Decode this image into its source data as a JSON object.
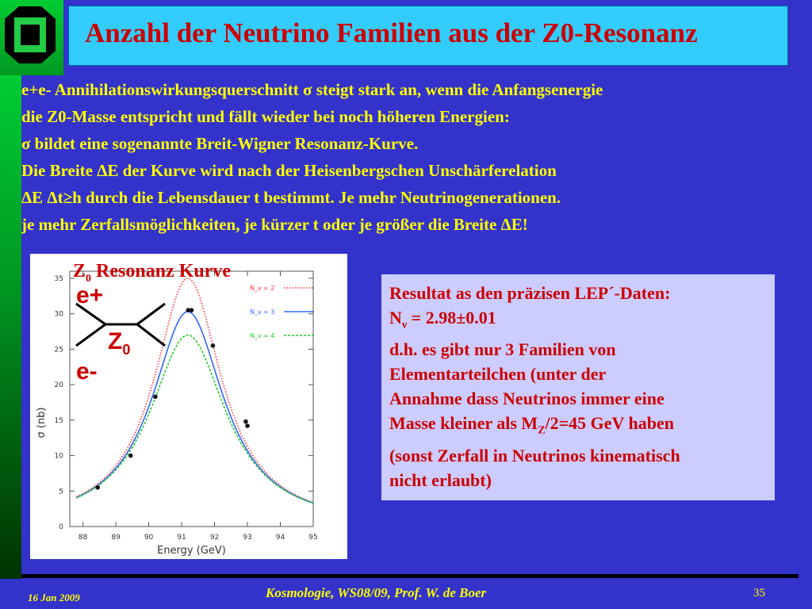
{
  "slide": {
    "title": "Anzahl der Neutrino Familien aus der Z0-Resonanz",
    "body_lines": [
      "e+e- Annihilationswirkungsquerschnitt σ steigt stark an,  wenn die Anfangsenergie",
      "die Z0-Masse entspricht und fällt wieder bei noch höheren Energien:",
      " σ bildet eine sogenannte Breit-Wigner Resonanz-Kurve.",
      " Die Breite ΔE der Kurve wird nach der Heisenbergschen Unschärferelation",
      "ΔE Δt≥h durch die Lebensdauer  t bestimmt. Je mehr Neutrinogenerationen.",
      "je mehr Zerfallsmöglichkeiten, je kürzer t oder je größer die Breite ΔE!"
    ]
  },
  "plot": {
    "title_main": "Z",
    "title_sub": "0",
    "title_rest": " Resonanz Kurve",
    "feynman": {
      "e_plus": "e+",
      "e_minus": "e-",
      "z_main": "Z",
      "z_sub": "0"
    }
  },
  "chart_data": {
    "type": "line",
    "xlabel": "Energy  (GeV)",
    "ylabel": "σ  (nb)",
    "xlim": [
      87.6,
      95
    ],
    "ylim": [
      0,
      36
    ],
    "x_ticks": [
      "88",
      "89",
      "90",
      "91",
      "92",
      "93",
      "94",
      "95"
    ],
    "y_ticks": [
      "0",
      "5",
      "10",
      "15",
      "20",
      "25",
      "30",
      "35"
    ],
    "series": [
      {
        "name": "N_ν = 2",
        "color": "#ff3333",
        "style": "dotted",
        "peak": 35.0
      },
      {
        "name": "N_ν = 3",
        "color": "#3366ff",
        "style": "solid",
        "peak": 30.3
      },
      {
        "name": "N_ν = 4",
        "color": "#22cc22",
        "style": "dashed",
        "peak": 27.0
      }
    ],
    "resonance": {
      "mass": 91.19,
      "gamma_base": 2.5,
      "gamma_step": 0.17
    },
    "measurements": {
      "x": [
        88.45,
        89.45,
        90.2,
        91.2,
        91.3,
        91.95,
        92.95,
        93.0
      ],
      "y": [
        5.5,
        10.0,
        18.3,
        30.5,
        30.5,
        25.5,
        14.8,
        14.2
      ]
    }
  },
  "result": {
    "line1": "Resultat as den präzisen LEP´-Daten:",
    "line2_main": "N",
    "line2_sub": "ν",
    "line2_rest": " = 2.98±0.01",
    "line3": "d.h. es gibt nur 3 Familien von",
    "line4": "Elementarteilchen (unter der",
    "line5": "Annahme dass Neutrinos immer eine",
    "line6_main": "Masse kleiner als M",
    "line6_sub": "Z",
    "line6_rest": "/2=45 GeV haben",
    "line7": "(sonst Zerfall in Neutrinos kinematisch",
    "line8": "nicht erlaubt)"
  },
  "footer": {
    "date": "16 Jan  2009",
    "center": "Kosmologie,  WS08/09,  Prof. W. de Boer",
    "page": "35"
  },
  "colors": {
    "background": "#3333cc",
    "title_box": "#33ccff",
    "title_text": "#cc0000",
    "body_text": "#ffff00",
    "result_box": "#ccccff"
  }
}
